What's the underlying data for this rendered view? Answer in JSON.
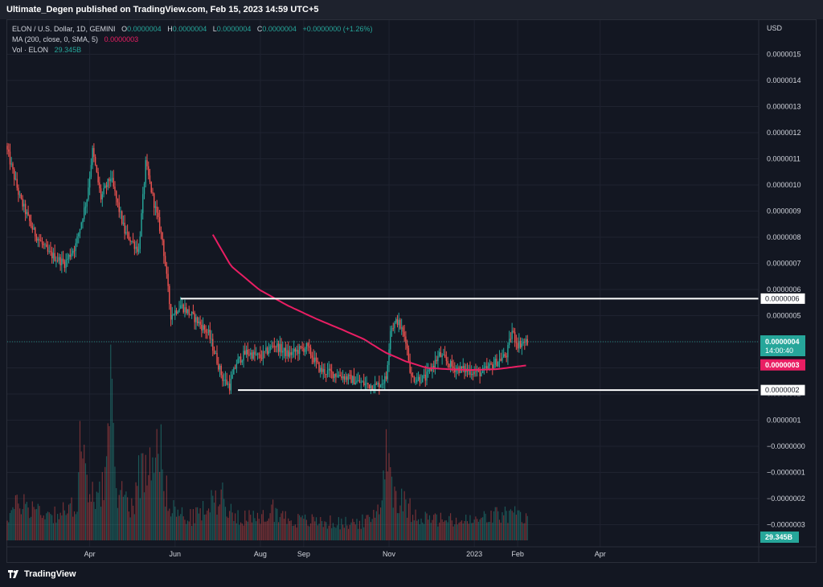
{
  "header": {
    "published": "Ultimate_Degen published on TradingView.com, Feb 15, 2023 14:59 UTC+5"
  },
  "legend": {
    "symbol": "ELON / U.S. Dollar, 1D, GEMINI",
    "o_label": "O",
    "o_value": "0.0000004",
    "h_label": "H",
    "h_value": "0.0000004",
    "l_label": "L",
    "l_value": "0.0000004",
    "c_label": "C",
    "c_value": "0.0000004",
    "change": "+0.0000000 (+1.26%)",
    "ma_label": "MA (200, close, 0, SMA, 5)",
    "ma_value": "0.0000003",
    "vol_label": "Vol · ELON",
    "vol_value": "29.345B"
  },
  "footer": {
    "brand": "TradingView"
  },
  "colors": {
    "up": "#26a69a",
    "down": "#ef5350",
    "ma": "#e91e63",
    "background": "#131722",
    "grid": "#1f2330",
    "text": "#d1d4dc",
    "hline": "#ffffff"
  },
  "chart_data": {
    "type": "candlestick",
    "currency": "USD",
    "y_ticks": [
      "0.0000015",
      "0.0000014",
      "0.0000013",
      "0.0000012",
      "0.0000011",
      "0.0000010",
      "0.0000009",
      "0.0000008",
      "0.0000007",
      "0.0000006",
      "0.0000005",
      "0.0000004",
      "0.0000003",
      "0.0000002",
      "0.0000001",
      "−0.0000000",
      "−0.0000001",
      "−0.0000002",
      "−0.0000003"
    ],
    "y_tick_values": [
      15,
      14,
      13,
      12,
      11,
      10,
      9,
      8,
      7,
      6,
      5,
      4,
      3,
      2,
      1,
      0,
      -1,
      -2,
      -3
    ],
    "y_unit": "1e-7 USD",
    "x_ticks": [
      "Apr",
      "Jun",
      "Aug",
      "Sep",
      "Nov",
      "2023",
      "Feb",
      "Apr"
    ],
    "x_tick_days": [
      59,
      120,
      181,
      212,
      273,
      334,
      365,
      424
    ],
    "x_origin": "2022-02-01",
    "ylim": [
      -3.5,
      16
    ],
    "price_series_key_points": [
      [
        0,
        11.5
      ],
      [
        10,
        9.5
      ],
      [
        20,
        8.2
      ],
      [
        30,
        7.4
      ],
      [
        42,
        7.0
      ],
      [
        50,
        7.7
      ],
      [
        58,
        9.5
      ],
      [
        62,
        11.3
      ],
      [
        68,
        9.5
      ],
      [
        75,
        10.3
      ],
      [
        85,
        8.2
      ],
      [
        95,
        7.5
      ],
      [
        100,
        10.8
      ],
      [
        106,
        9.3
      ],
      [
        112,
        7.9
      ],
      [
        118,
        5.0
      ],
      [
        125,
        5.4
      ],
      [
        135,
        4.9
      ],
      [
        145,
        4.3
      ],
      [
        155,
        2.6
      ],
      [
        160,
        2.3
      ],
      [
        165,
        3.2
      ],
      [
        172,
        3.6
      ],
      [
        182,
        3.4
      ],
      [
        192,
        3.9
      ],
      [
        202,
        3.5
      ],
      [
        215,
        3.8
      ],
      [
        225,
        2.9
      ],
      [
        240,
        2.7
      ],
      [
        255,
        2.4
      ],
      [
        265,
        2.3
      ],
      [
        272,
        2.6
      ],
      [
        275,
        4.5
      ],
      [
        280,
        4.8
      ],
      [
        286,
        4.1
      ],
      [
        290,
        2.6
      ],
      [
        300,
        2.6
      ],
      [
        310,
        3.5
      ],
      [
        320,
        3.0
      ],
      [
        330,
        2.9
      ],
      [
        340,
        2.8
      ],
      [
        350,
        3.2
      ],
      [
        358,
        3.5
      ],
      [
        362,
        4.4
      ],
      [
        366,
        3.9
      ],
      [
        372,
        4.0
      ]
    ],
    "ma_series_key_points": [
      [
        147,
        8.1
      ],
      [
        160,
        6.9
      ],
      [
        180,
        6.0
      ],
      [
        200,
        5.4
      ],
      [
        220,
        4.9
      ],
      [
        240,
        4.45
      ],
      [
        255,
        4.1
      ],
      [
        270,
        3.6
      ],
      [
        285,
        3.25
      ],
      [
        300,
        3.0
      ],
      [
        315,
        2.95
      ],
      [
        330,
        2.92
      ],
      [
        350,
        2.95
      ],
      [
        372,
        3.1
      ]
    ],
    "volume_key_points": [
      [
        0,
        1.0
      ],
      [
        10,
        1.6
      ],
      [
        20,
        1.3
      ],
      [
        30,
        1.1
      ],
      [
        45,
        1.2
      ],
      [
        50,
        1.8
      ],
      [
        52,
        4.5
      ],
      [
        58,
        1.6
      ],
      [
        70,
        2.5
      ],
      [
        74,
        5.8
      ],
      [
        78,
        2.2
      ],
      [
        90,
        1.4
      ],
      [
        93,
        2.6
      ],
      [
        100,
        3.0
      ],
      [
        108,
        5.0
      ],
      [
        112,
        2.2
      ],
      [
        120,
        1.2
      ],
      [
        130,
        0.9
      ],
      [
        140,
        1.2
      ],
      [
        155,
        2.0
      ],
      [
        160,
        1.1
      ],
      [
        170,
        1.0
      ],
      [
        180,
        0.8
      ],
      [
        190,
        1.3
      ],
      [
        200,
        0.9
      ],
      [
        210,
        0.8
      ],
      [
        220,
        0.8
      ],
      [
        240,
        0.7
      ],
      [
        260,
        0.8
      ],
      [
        268,
        1.8
      ],
      [
        272,
        4.6
      ],
      [
        275,
        2.3
      ],
      [
        280,
        1.7
      ],
      [
        290,
        1.2
      ],
      [
        300,
        0.9
      ],
      [
        320,
        0.8
      ],
      [
        335,
        0.8
      ],
      [
        345,
        1.0
      ],
      [
        360,
        1.1
      ],
      [
        372,
        0.8
      ]
    ],
    "horizontal_levels": [
      {
        "value": 5.65,
        "label": "0.0000006"
      },
      {
        "value": 2.15,
        "label": "0.0000002"
      }
    ],
    "price_label": {
      "value": 4.0,
      "label": "0.0000004",
      "countdown": "14:00:40"
    },
    "ma_label": {
      "value": 3.1,
      "label": "0.0000003"
    },
    "volume_label": {
      "label": "29.345B"
    }
  }
}
